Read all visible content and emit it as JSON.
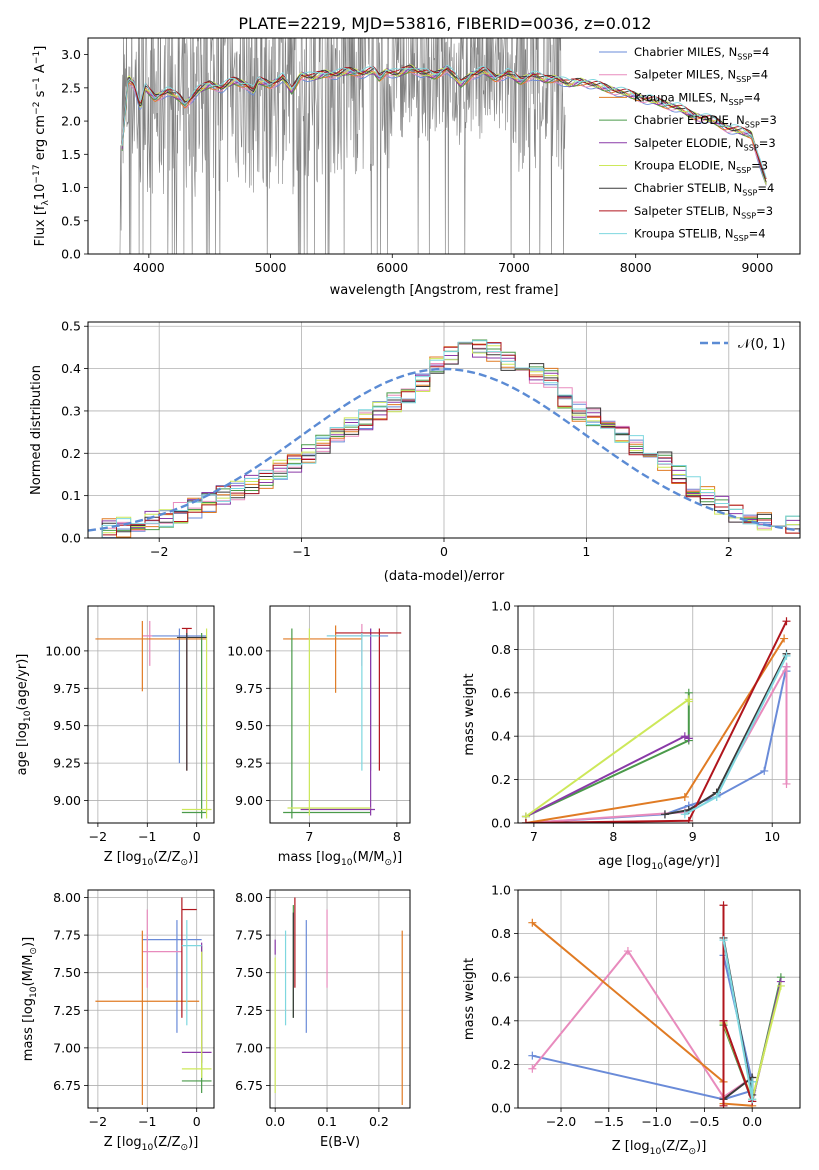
{
  "figure": {
    "title": "PLATE=2219, MJD=53816, FIBERID=0036, z=0.012"
  },
  "colors": {
    "data_spectrum": "#808080",
    "models": [
      "#6a8bd8",
      "#e88bbd",
      "#e07b24",
      "#4a9a4a",
      "#8a3aa8",
      "#cde85a",
      "#3a3a3a",
      "#b0151d",
      "#7ed7df"
    ]
  },
  "legend_models": [
    {
      "base": "Chabrier MILES, N",
      "sub": "SSP",
      "tail": "=4"
    },
    {
      "base": "Salpeter MILES, N",
      "sub": "SSP",
      "tail": "=4"
    },
    {
      "base": "Kroupa MILES, N",
      "sub": "SSP",
      "tail": "=4"
    },
    {
      "base": "Chabrier ELODIE, N",
      "sub": "SSP",
      "tail": "=3"
    },
    {
      "base": "Salpeter ELODIE, N",
      "sub": "SSP",
      "tail": "=3"
    },
    {
      "base": "Kroupa ELODIE, N",
      "sub": "SSP",
      "tail": "=3"
    },
    {
      "base": "Chabrier STELIB, N",
      "sub": "SSP",
      "tail": "=4"
    },
    {
      "base": "Salpeter STELIB, N",
      "sub": "SSP",
      "tail": "=3"
    },
    {
      "base": "Kroupa STELIB, N",
      "sub": "SSP",
      "tail": "=4"
    }
  ],
  "chart_data": [
    {
      "id": "spectrum",
      "type": "line",
      "xlabel": "wavelength [Angstrom, rest frame]",
      "ylabel": {
        "a": "Flux [f",
        "a_sub": "λ",
        "b": "10",
        "b_sup": "−17",
        "c": " erg cm",
        "c_sup": "−2",
        "d": " s",
        "d_sup": "−1",
        "e": " A",
        "e_sup": "−1",
        "f": "]"
      },
      "xlim": [
        3500,
        9350
      ],
      "ylim": [
        0,
        3.25
      ],
      "xticks": [
        4000,
        5000,
        6000,
        7000,
        8000,
        9000
      ],
      "yticks": [
        0.0,
        0.5,
        1.0,
        1.5,
        2.0,
        2.5,
        3.0
      ],
      "legend": "upper right",
      "model_curve": {
        "x": [
          3780,
          3830,
          3880,
          3930,
          3970,
          4050,
          4150,
          4250,
          4300,
          4400,
          4500,
          4600,
          4700,
          4800,
          4862,
          4900,
          5000,
          5100,
          5175,
          5250,
          5350,
          5450,
          5550,
          5650,
          5750,
          5850,
          5893,
          5950,
          6050,
          6150,
          6250,
          6350,
          6450,
          6563,
          6650,
          6750,
          6850,
          6950,
          7050,
          7150,
          7250,
          7350,
          7450,
          7550,
          7650,
          7750,
          7850,
          7950,
          8050,
          8150,
          8250,
          8350,
          8450,
          8550,
          8650,
          8750,
          8850,
          8950,
          9050,
          9100
        ],
        "y": [
          1.6,
          2.65,
          2.55,
          2.2,
          2.5,
          2.35,
          2.45,
          2.35,
          2.25,
          2.45,
          2.55,
          2.5,
          2.6,
          2.55,
          2.45,
          2.6,
          2.55,
          2.65,
          2.45,
          2.7,
          2.65,
          2.72,
          2.7,
          2.75,
          2.72,
          2.75,
          2.65,
          2.75,
          2.7,
          2.8,
          2.72,
          2.68,
          2.8,
          2.55,
          2.7,
          2.75,
          2.65,
          2.72,
          2.6,
          2.7,
          2.62,
          2.65,
          2.55,
          2.6,
          2.55,
          2.5,
          2.45,
          2.4,
          2.35,
          2.3,
          2.25,
          2.2,
          2.1,
          2.05,
          2.0,
          1.9,
          1.85,
          1.8,
          1.2,
          0.9
        ]
      }
    },
    {
      "id": "residuals",
      "type": "line",
      "xlabel": "(data-model)/error",
      "ylabel": "Normed distribution",
      "xlim": [
        -2.5,
        2.5
      ],
      "ylim": [
        0,
        0.51
      ],
      "xticks": [
        -2,
        -1,
        0,
        1,
        2
      ],
      "yticks": [
        0.0,
        0.1,
        0.2,
        0.3,
        0.4,
        0.5
      ],
      "legend": "upper right",
      "gaussian_label": "𝒩(0, 1)",
      "bin_width": 0.1,
      "bin_start": -2.5,
      "hist_base": [
        0.02,
        0.022,
        0.025,
        0.03,
        0.04,
        0.05,
        0.06,
        0.07,
        0.085,
        0.1,
        0.11,
        0.125,
        0.14,
        0.16,
        0.18,
        0.2,
        0.22,
        0.24,
        0.26,
        0.28,
        0.3,
        0.32,
        0.34,
        0.37,
        0.41,
        0.43,
        0.44,
        0.45,
        0.44,
        0.42,
        0.41,
        0.39,
        0.38,
        0.33,
        0.3,
        0.29,
        0.27,
        0.25,
        0.22,
        0.2,
        0.18,
        0.15,
        0.12,
        0.1,
        0.08,
        0.06,
        0.05,
        0.04,
        0.03,
        0.03
      ]
    },
    {
      "id": "z-age",
      "type": "scatter",
      "xlabel": {
        "a": "Z [log",
        "a_sub": "10",
        "b": "(Z/Z",
        "b_sub": "⊙",
        "c": ")]"
      },
      "ylabel": {
        "a": "age  [log",
        "a_sub": "10",
        "b": "(age/yr)]"
      },
      "xlim": [
        -2.2,
        0.35
      ],
      "ylim": [
        8.85,
        10.3
      ],
      "xticks": [
        -2,
        -1,
        0
      ],
      "yticks": [
        9.0,
        9.25,
        9.5,
        9.75,
        10.0
      ],
      "ytick_labels": [
        "9.00",
        "9.25",
        "9.50",
        "9.75",
        "10.00"
      ],
      "points": [
        {
          "x": -0.35,
          "y": 10.1,
          "xe": [
            -1.1,
            0.2
          ],
          "ye": [
            9.25,
            10.15
          ],
          "color": 0
        },
        {
          "x": -0.95,
          "y": 10.1,
          "xe": [
            -1.1,
            -0.9
          ],
          "ye": [
            9.9,
            10.2
          ],
          "color": 1
        },
        {
          "x": -1.1,
          "y": 10.08,
          "xe": [
            -2.05,
            0.2
          ],
          "ye": [
            9.73,
            10.2
          ],
          "color": 2
        },
        {
          "x": 0.1,
          "y": 8.92,
          "xe": [
            -0.3,
            0.2
          ],
          "ye": [
            8.88,
            10.12
          ],
          "color": 3
        },
        {
          "x": -0.2,
          "y": 10.15,
          "xe": [
            -0.3,
            -0.1
          ],
          "ye": [
            9.2,
            10.15
          ],
          "color": 7
        },
        {
          "x": 0.2,
          "y": 8.94,
          "xe": [
            -0.3,
            0.3
          ],
          "ye": [
            8.88,
            10.15
          ],
          "color": 5
        },
        {
          "x": -0.2,
          "y": 10.09,
          "xe": [
            -0.4,
            0.2
          ],
          "ye": [
            9.2,
            10.12
          ],
          "color": 6
        }
      ]
    },
    {
      "id": "mass-age",
      "type": "scatter",
      "xlabel": {
        "a": "mass [log",
        "a_sub": "10",
        "b": "(M/M",
        "b_sub": "⊙",
        "c": ")]"
      },
      "ylabel": "",
      "xlim": [
        6.55,
        8.15
      ],
      "ylim": [
        8.85,
        10.3
      ],
      "xticks": [
        7,
        8
      ],
      "yticks": [
        9.0,
        9.25,
        9.5,
        9.75,
        10.0
      ],
      "ytick_labels": [
        "9.00",
        "9.25",
        "9.50",
        "9.75",
        "10.00"
      ],
      "points": [
        {
          "x": 7.7,
          "y": 10.1,
          "xe": [
            7.2,
            7.9
          ],
          "ye": [
            9.2,
            10.15
          ],
          "color": 0
        },
        {
          "x": 7.6,
          "y": 10.1,
          "xe": [
            7.3,
            7.7
          ],
          "ye": [
            9.9,
            10.18
          ],
          "color": 1
        },
        {
          "x": 7.3,
          "y": 10.08,
          "xe": [
            6.7,
            7.6
          ],
          "ye": [
            9.72,
            10.17
          ],
          "color": 2
        },
        {
          "x": 6.8,
          "y": 8.92,
          "xe": [
            6.7,
            7.7
          ],
          "ye": [
            8.88,
            10.15
          ],
          "color": 3
        },
        {
          "x": 7.7,
          "y": 8.94,
          "xe": [
            6.9,
            7.75
          ],
          "ye": [
            8.9,
            10.15
          ],
          "color": 4
        },
        {
          "x": 7.0,
          "y": 8.95,
          "xe": [
            6.75,
            7.7
          ],
          "ye": [
            8.9,
            10.15
          ],
          "color": 5
        },
        {
          "x": 7.8,
          "y": 10.12,
          "xe": [
            7.3,
            8.05
          ],
          "ye": [
            9.2,
            10.15
          ],
          "color": 7
        },
        {
          "x": 7.6,
          "y": 10.1,
          "xe": [
            7.2,
            7.8
          ],
          "ye": [
            9.2,
            10.12
          ],
          "color": 8
        }
      ]
    },
    {
      "id": "age-weight",
      "type": "line",
      "xlabel": {
        "a": "age  [log",
        "a_sub": "10",
        "b": "(age/yr)]"
      },
      "ylabel": "mass weight",
      "xlim": [
        6.8,
        10.35
      ],
      "ylim": [
        0,
        1.0
      ],
      "xticks": [
        7,
        8,
        9,
        10
      ],
      "yticks": [
        0.0,
        0.2,
        0.4,
        0.6,
        0.8,
        1.0
      ],
      "series": [
        {
          "x": [
            6.9,
            8.65,
            8.95,
            9.3,
            9.9,
            10.18,
            10.18
          ],
          "y": [
            0.0,
            0.04,
            0.08,
            0.12,
            0.24,
            0.72,
            0.7
          ],
          "color": 0
        },
        {
          "x": [
            6.9,
            8.9,
            9.3,
            10.18,
            10.18
          ],
          "y": [
            0.0,
            0.05,
            0.14,
            0.72,
            0.18
          ],
          "color": 1
        },
        {
          "x": [
            6.9,
            8.9,
            10.15
          ],
          "y": [
            0.0,
            0.12,
            0.85
          ],
          "color": 2
        },
        {
          "x": [
            6.9,
            8.95,
            8.95
          ],
          "y": [
            0.03,
            0.38,
            0.6
          ],
          "color": 3
        },
        {
          "x": [
            6.9,
            8.9,
            8.95
          ],
          "y": [
            0.03,
            0.4,
            0.39
          ],
          "color": 4
        },
        {
          "x": [
            6.9,
            8.95,
            8.95
          ],
          "y": [
            0.03,
            0.57,
            0.56
          ],
          "color": 5
        },
        {
          "x": [
            8.65,
            8.95,
            9.3,
            10.18
          ],
          "y": [
            0.04,
            0.06,
            0.14,
            0.78
          ],
          "color": 6
        },
        {
          "x": [
            6.9,
            8.95,
            10.18
          ],
          "y": [
            0.0,
            0.01,
            0.93
          ],
          "color": 7
        },
        {
          "x": [
            8.9,
            9.3,
            10.18
          ],
          "y": [
            0.04,
            0.12,
            0.77
          ],
          "color": 8
        }
      ]
    },
    {
      "id": "z-mass",
      "type": "scatter",
      "xlabel": {
        "a": "Z [log",
        "a_sub": "10",
        "b": "(Z/Z",
        "b_sub": "⊙",
        "c": ")]"
      },
      "ylabel": {
        "a": "mass [log",
        "a_sub": "10",
        "b": "(M/M",
        "b_sub": "⊙",
        "c": ")]"
      },
      "xlim": [
        -2.2,
        0.35
      ],
      "ylim": [
        6.6,
        8.05
      ],
      "xticks": [
        -2,
        -1,
        0
      ],
      "yticks": [
        6.75,
        7.0,
        7.25,
        7.5,
        7.75,
        8.0
      ],
      "ytick_labels": [
        "6.75",
        "7.00",
        "7.25",
        "7.50",
        "7.75",
        "8.00"
      ],
      "points": [
        {
          "x": -0.4,
          "y": 7.72,
          "xe": [
            -1.1,
            0.1
          ],
          "ye": [
            7.1,
            7.85
          ],
          "color": 0
        },
        {
          "x": -1.0,
          "y": 7.64,
          "xe": [
            -1.1,
            -0.3
          ],
          "ye": [
            7.4,
            7.92
          ],
          "color": 1
        },
        {
          "x": -1.1,
          "y": 7.31,
          "xe": [
            -2.05,
            0.05
          ],
          "ye": [
            6.62,
            7.78
          ],
          "color": 2
        },
        {
          "x": 0.1,
          "y": 6.78,
          "xe": [
            -0.3,
            0.3
          ],
          "ye": [
            6.7,
            7.68
          ],
          "color": 3
        },
        {
          "x": 0.1,
          "y": 6.97,
          "xe": [
            -0.3,
            0.3
          ],
          "ye": [
            6.9,
            7.7
          ],
          "color": 4
        },
        {
          "x": 0.1,
          "y": 6.86,
          "xe": [
            -0.3,
            0.3
          ],
          "ye": [
            6.8,
            7.64
          ],
          "color": 5
        },
        {
          "x": -0.3,
          "y": 7.92,
          "xe": [
            -0.3,
            0.0
          ],
          "ye": [
            7.2,
            8.0
          ],
          "color": 7
        },
        {
          "x": -0.2,
          "y": 7.68,
          "xe": [
            -0.3,
            0.1
          ],
          "ye": [
            7.15,
            7.85
          ],
          "color": 8
        }
      ]
    },
    {
      "id": "ebv-mass",
      "type": "scatter",
      "xlabel": "E(B-V)",
      "ylabel": "",
      "xlim": [
        -0.01,
        0.26
      ],
      "ylim": [
        6.6,
        8.05
      ],
      "xticks": [
        0.0,
        0.1,
        0.2
      ],
      "xtick_labels": [
        "0.0",
        "0.1",
        "0.2"
      ],
      "yticks": [
        6.75,
        7.0,
        7.25,
        7.5,
        7.75,
        8.0
      ],
      "ytick_labels": [
        "6.75",
        "7.00",
        "7.25",
        "7.50",
        "7.75",
        "8.00"
      ],
      "points": [
        {
          "x": 0.06,
          "y": 7.5,
          "xe": null,
          "ye": [
            7.1,
            7.85
          ],
          "color": 0
        },
        {
          "x": 0.1,
          "y": 7.6,
          "xe": null,
          "ye": [
            7.4,
            7.92
          ],
          "color": 1
        },
        {
          "x": 0.245,
          "y": 7.2,
          "xe": null,
          "ye": [
            6.62,
            7.78
          ],
          "color": 2
        },
        {
          "x": 0.035,
          "y": 7.45,
          "xe": null,
          "ye": [
            7.2,
            7.95
          ],
          "color": 3
        },
        {
          "x": 0.0,
          "y": 7.7,
          "xe": null,
          "ye": [
            7.62,
            7.72
          ],
          "color": 4
        },
        {
          "x": 0.0,
          "y": 7.2,
          "xe": null,
          "ye": [
            6.7,
            7.6
          ],
          "color": 5
        },
        {
          "x": 0.035,
          "y": 7.6,
          "xe": null,
          "ye": [
            7.2,
            7.9
          ],
          "color": 6
        },
        {
          "x": 0.038,
          "y": 7.9,
          "xe": null,
          "ye": [
            7.4,
            8.0
          ],
          "color": 7
        },
        {
          "x": 0.02,
          "y": 7.4,
          "xe": null,
          "ye": [
            7.15,
            7.78
          ],
          "color": 8
        }
      ]
    },
    {
      "id": "z-weight",
      "type": "line",
      "xlabel": {
        "a": "Z [log",
        "a_sub": "10",
        "b": "(Z/Z",
        "b_sub": "⊙",
        "c": ")]"
      },
      "ylabel": "mass weight",
      "xlim": [
        -2.45,
        0.5
      ],
      "ylim": [
        0,
        1.0
      ],
      "xticks": [
        -2.0,
        -1.5,
        -1.0,
        -0.5,
        0.0
      ],
      "xtick_labels": [
        "−2.0",
        "−1.5",
        "−1.0",
        "−0.5",
        "0.0"
      ],
      "yticks": [
        0.0,
        0.2,
        0.4,
        0.6,
        0.8,
        1.0
      ],
      "series": [
        {
          "x": [
            -2.3,
            -0.3,
            0.0,
            0.0,
            -0.3
          ],
          "y": [
            0.24,
            0.04,
            0.08,
            0.12,
            0.7
          ],
          "color": 0
        },
        {
          "x": [
            -2.3,
            -1.3,
            -0.3,
            0.0
          ],
          "y": [
            0.18,
            0.72,
            0.05,
            0.14
          ],
          "color": 1
        },
        {
          "x": [
            -2.3,
            -0.3,
            -0.3,
            0.0
          ],
          "y": [
            0.85,
            0.12,
            0.02,
            0.01
          ],
          "color": 2
        },
        {
          "x": [
            -0.3,
            0.0,
            0.3
          ],
          "y": [
            0.38,
            0.03,
            0.6
          ],
          "color": 3
        },
        {
          "x": [
            -0.3,
            0.0,
            0.3
          ],
          "y": [
            0.4,
            0.03,
            0.58
          ],
          "color": 4
        },
        {
          "x": [
            -0.3,
            0.0,
            0.3
          ],
          "y": [
            0.39,
            0.04,
            0.56
          ],
          "color": 5
        },
        {
          "x": [
            -0.3,
            0.0,
            0.0,
            -0.3
          ],
          "y": [
            0.78,
            0.06,
            0.14,
            0.04
          ],
          "color": 6
        },
        {
          "x": [
            -0.3,
            -0.3,
            -0.3,
            0.0
          ],
          "y": [
            0.93,
            0.01,
            0.4,
            0.03
          ],
          "color": 7
        },
        {
          "x": [
            -0.3,
            0.0,
            0.0
          ],
          "y": [
            0.77,
            0.04,
            0.12
          ],
          "color": 8
        }
      ]
    }
  ]
}
